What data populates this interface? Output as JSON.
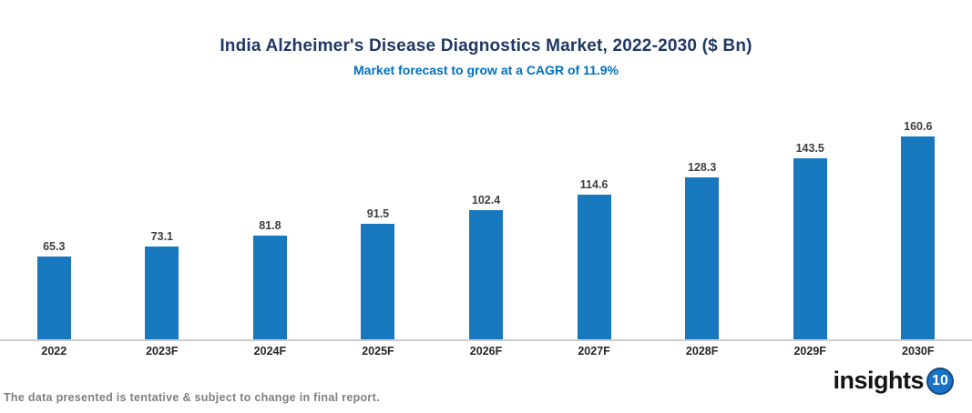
{
  "header": {
    "title": "India Alzheimer's Disease Diagnostics Market, 2022-2030 ($ Bn)",
    "subtitle": "Market forecast to grow at a CAGR of 11.9%"
  },
  "chart_data": {
    "type": "bar",
    "title": "India Alzheimer's Disease Diagnostics Market, 2022-2030 ($ Bn)",
    "subtitle": "Market forecast to grow at a CAGR of 11.9%",
    "categories": [
      "2022",
      "2023F",
      "2024F",
      "2025F",
      "2026F",
      "2027F",
      "2028F",
      "2029F",
      "2030F"
    ],
    "values": [
      65.3,
      73.1,
      81.8,
      91.5,
      102.4,
      114.6,
      128.3,
      143.5,
      160.6
    ],
    "xlabel": "",
    "ylabel": "",
    "ylim": [
      0,
      180
    ],
    "grid": false,
    "legend": false,
    "data_labels": true,
    "bar_color": "#1778BE"
  },
  "footer": {
    "disclaimer": "The data presented is tentative & subject to change in final report.",
    "logo_text": "insights",
    "logo_badge": "10"
  },
  "colors": {
    "title": "#1F3864",
    "subtitle": "#0070C0",
    "bar": "#1778BE",
    "axis_line": "#CFCDCD",
    "data_label": "#404040",
    "category_label": "#262626",
    "footer_text": "#7F7F7F",
    "logo_badge_bg": "#1673C5"
  }
}
